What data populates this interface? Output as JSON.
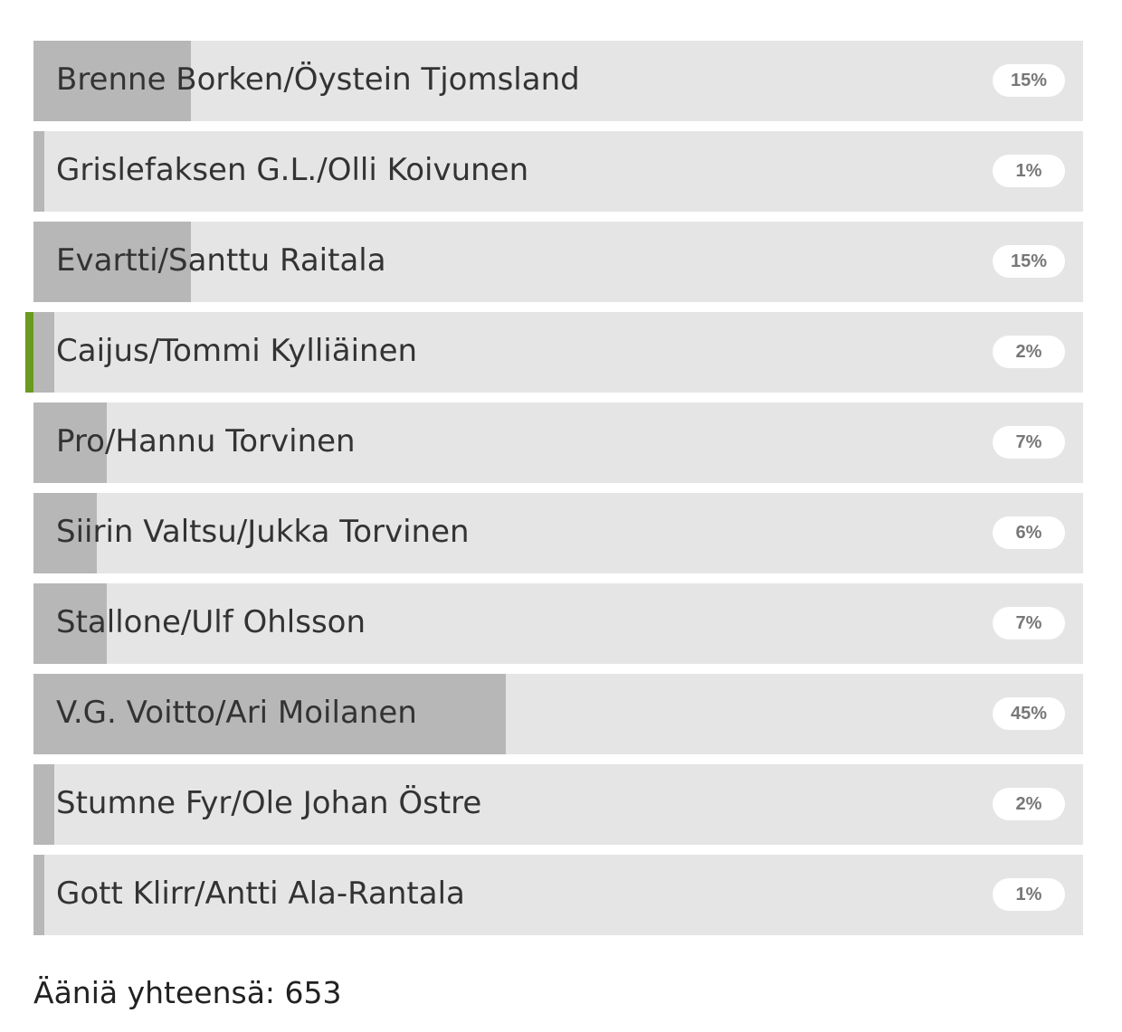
{
  "poll": {
    "options": [
      {
        "label": "Brenne Borken/Öystein Tjomsland",
        "percent": 15,
        "percent_label": "15%"
      },
      {
        "label": "Grislefaksen G.L./Olli Koivunen",
        "percent": 1,
        "percent_label": "1%"
      },
      {
        "label": "Evartti/Santtu Raitala",
        "percent": 15,
        "percent_label": "15%"
      },
      {
        "label": "Caijus/Tommi Kylliäinen",
        "percent": 2,
        "percent_label": "2%",
        "selected": true
      },
      {
        "label": "Pro/Hannu Torvinen",
        "percent": 7,
        "percent_label": "7%"
      },
      {
        "label": "Siirin Valtsu/Jukka Torvinen",
        "percent": 6,
        "percent_label": "6%"
      },
      {
        "label": "Stallone/Ulf Ohlsson",
        "percent": 7,
        "percent_label": "7%"
      },
      {
        "label": "V.G. Voitto/Ari Moilanen",
        "percent": 45,
        "percent_label": "45%"
      },
      {
        "label": "Stumne Fyr/Ole Johan Östre",
        "percent": 2,
        "percent_label": "2%"
      },
      {
        "label": "Gott Klirr/Antti Ala-Rantala",
        "percent": 1,
        "percent_label": "1%"
      }
    ],
    "total_label": "Ääniä yhteensä: 653"
  },
  "colors": {
    "fill": "#b7b7b7",
    "track": "#e5e5e5",
    "selected_accent": "#6a9a1f",
    "badge_text": "#777777"
  }
}
